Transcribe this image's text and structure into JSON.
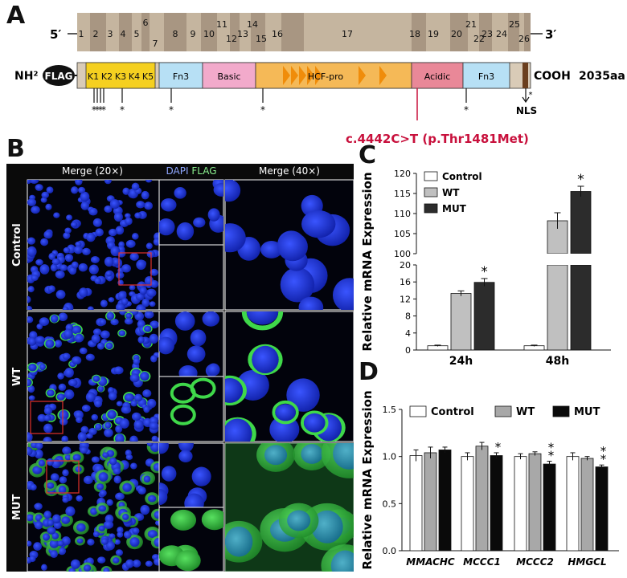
{
  "panel_a": {
    "letter": "A",
    "gene": {
      "five_prime": "5′",
      "three_prime": "3′",
      "exons": [
        "1",
        "2",
        "3",
        "4",
        "5",
        "6",
        "7",
        "8",
        "9",
        "10",
        "11",
        "12",
        "13",
        "14",
        "15",
        "16",
        "17",
        "18",
        "19",
        "20",
        "21",
        "22",
        "23",
        "24",
        "25",
        "26"
      ]
    },
    "protein": {
      "n_term": "NH²",
      "tag": "FLAG",
      "c_term": "COOH",
      "length": "2035aa",
      "kelch": [
        "K1",
        "K2",
        "K3",
        "K4",
        "K5"
      ],
      "domains": {
        "fn3_1": "Fn3",
        "basic": "Basic",
        "hcf_pro": "HCF-pro",
        "acidic": "Acidic",
        "fn3_2": "Fn3"
      },
      "nls": "NLS",
      "star": "*",
      "mutation": "c.4442C>T (p.Thr1481Met)"
    },
    "colors": {
      "gene_bar": "#b8a690",
      "kelch": "#f5d020",
      "fn3": "#b7e0f5",
      "basic": "#f2aacb",
      "hcf": "#f5b957",
      "acidic": "#e98898",
      "mutation": "#c8103c"
    }
  },
  "panel_b": {
    "letter": "B",
    "headers": {
      "merge20": "Merge (20×)",
      "dapi": "DAPI",
      "flag": "FLAG",
      "merge40": "Merge (40×)"
    },
    "rows": [
      "Control",
      "WT",
      "MUT"
    ],
    "colors": {
      "dapi": "#1f35e0",
      "flag": "#3fd84a"
    }
  },
  "panel_c": {
    "letter": "C",
    "chart_data": {
      "type": "bar",
      "categories": [
        "24h",
        "48h"
      ],
      "series": [
        {
          "name": "Control",
          "values": [
            1,
            1
          ],
          "errors": [
            0.15,
            0.15
          ],
          "color": "#ffffff"
        },
        {
          "name": "WT",
          "values": [
            13.3,
            108.2
          ],
          "errors": [
            0.6,
            2.0
          ],
          "color": "#c0c0c0"
        },
        {
          "name": "MUT",
          "values": [
            15.9,
            115.5
          ],
          "errors": [
            0.9,
            1.3
          ],
          "color": "#2c2c2c"
        }
      ],
      "significance": [
        [
          "",
          "",
          "*"
        ],
        [
          "",
          "",
          "*"
        ]
      ],
      "ylabel": "Relative mRNA Expression",
      "ylim_lower": [
        0,
        20
      ],
      "yticks_lower": [
        "0",
        "4",
        "8",
        "12",
        "16",
        "20"
      ],
      "ylim_upper": [
        100,
        120
      ],
      "yticks_upper": [
        "100",
        "105",
        "110",
        "115",
        "120"
      ],
      "axis_break": true,
      "legend_position": "top-left"
    }
  },
  "panel_d": {
    "letter": "D",
    "chart_data": {
      "type": "bar",
      "categories": [
        "MMACHC",
        "MCCC1",
        "MCCC2",
        "HMGCL"
      ],
      "series": [
        {
          "name": "Control",
          "values": [
            1.01,
            1.0,
            1.0,
            1.0
          ],
          "errors": [
            0.06,
            0.04,
            0.03,
            0.04
          ],
          "color": "#ffffff"
        },
        {
          "name": "WT",
          "values": [
            1.04,
            1.11,
            1.03,
            0.98
          ],
          "errors": [
            0.06,
            0.04,
            0.02,
            0.02
          ],
          "color": "#a8a8a8"
        },
        {
          "name": "MUT",
          "values": [
            1.07,
            1.01,
            0.92,
            0.89
          ],
          "errors": [
            0.03,
            0.03,
            0.03,
            0.02
          ],
          "color": "#0a0a0a"
        }
      ],
      "significance": [
        [
          "",
          "",
          ""
        ],
        [
          "",
          "",
          "*"
        ],
        [
          "",
          "",
          "**"
        ],
        [
          "",
          "",
          "**"
        ]
      ],
      "ylabel": "Relative mRNA Expression",
      "ylim": [
        0,
        1.5
      ],
      "yticks": [
        "0.0",
        "0.5",
        "1.0",
        "1.5"
      ],
      "legend_position": "top"
    }
  }
}
